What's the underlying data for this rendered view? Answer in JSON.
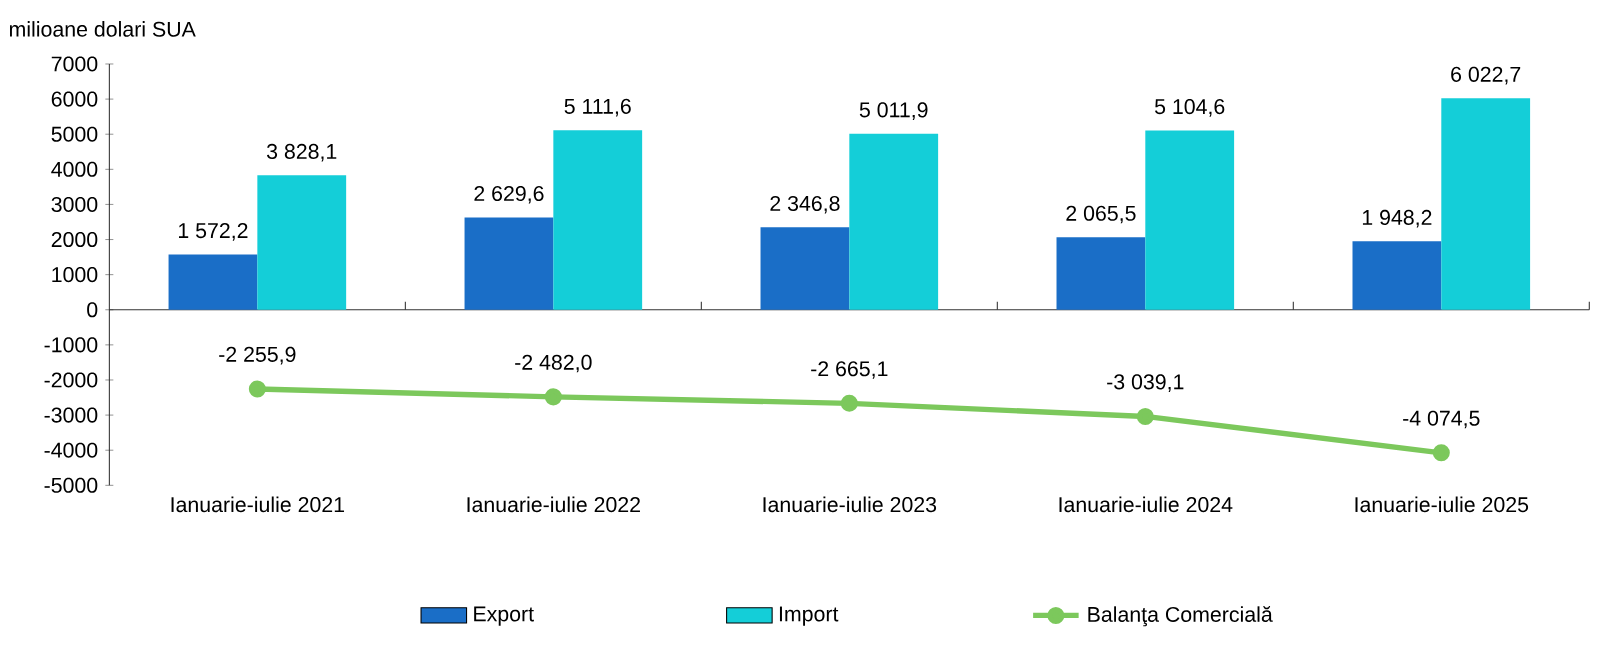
{
  "chart_data": {
    "type": "bar",
    "ylabel": "milioane dolari SUA",
    "categories": [
      "Ianuarie-iulie 2021",
      "Ianuarie-iulie 2022",
      "Ianuarie-iulie 2023",
      "Ianuarie-iulie 2024",
      "Ianuarie-iulie 2025"
    ],
    "series": [
      {
        "name": "Export",
        "color": "#1a6ec7",
        "values": [
          1572.2,
          2629.6,
          2346.8,
          2065.5,
          1948.2
        ],
        "value_labels": [
          "1 572,2",
          "2 629,6",
          "2 346,8",
          "2 065,5",
          "1 948,2"
        ]
      },
      {
        "name": "Import",
        "color": "#14ced8",
        "values": [
          3828.1,
          5111.6,
          5011.9,
          5104.6,
          6022.7
        ],
        "value_labels": [
          "3 828,1",
          "5 111,6",
          "5 011,9",
          "5 104,6",
          "6 022,7"
        ]
      },
      {
        "name": "Balanţa Comercială",
        "type": "line",
        "color": "#7cc85c",
        "marker": "circle",
        "values": [
          -2255.9,
          -2482.0,
          -2665.1,
          -3039.1,
          -4074.5
        ],
        "value_labels": [
          "-2 255,9",
          "-2 482,0",
          "-2 665,1",
          "-3 039,1",
          "-4 074,5"
        ]
      }
    ],
    "ylim": [
      -5000,
      7000
    ],
    "yticks": [
      -5000,
      -4000,
      -3000,
      -2000,
      -1000,
      0,
      1000,
      2000,
      3000,
      4000,
      5000,
      6000,
      7000
    ],
    "legend": "bottom"
  }
}
